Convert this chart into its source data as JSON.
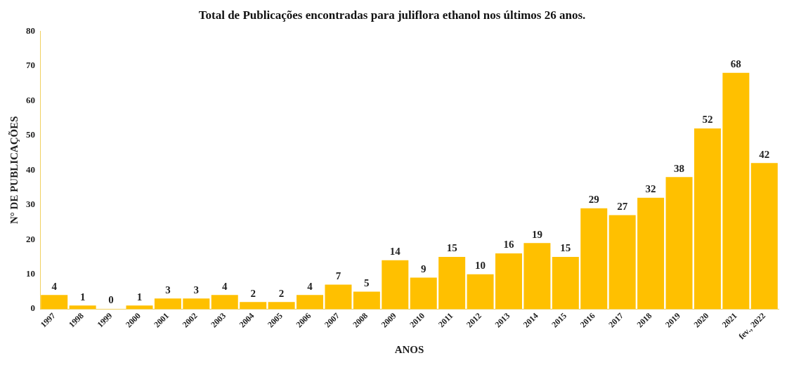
{
  "chart_data": {
    "type": "bar",
    "title": "Total de Publicações encontradas para juliflora ethanol nos últimos 26 anos.",
    "xlabel": "ANOS",
    "ylabel": "N° DE PUBLICAÇÕES",
    "categories": [
      "1997",
      "1998",
      "1999",
      "2000",
      "2001",
      "2002",
      "2003",
      "2004",
      "2005",
      "2006",
      "2007",
      "2008",
      "2009",
      "2010",
      "2011",
      "2012",
      "2013",
      "2014",
      "2015",
      "2016",
      "2017",
      "2018",
      "2019",
      "2020",
      "2021",
      "fev., 2022"
    ],
    "values": [
      4,
      1,
      0,
      1,
      3,
      3,
      4,
      2,
      2,
      4,
      7,
      5,
      14,
      9,
      15,
      10,
      16,
      19,
      15,
      29,
      27,
      32,
      38,
      52,
      68,
      42
    ],
    "color": "#ffc000",
    "ylim": [
      0,
      80
    ],
    "yticks": [
      0,
      10,
      20,
      30,
      40,
      50,
      60,
      70,
      80
    ],
    "grid": false,
    "legend": false,
    "data_labels": true
  }
}
